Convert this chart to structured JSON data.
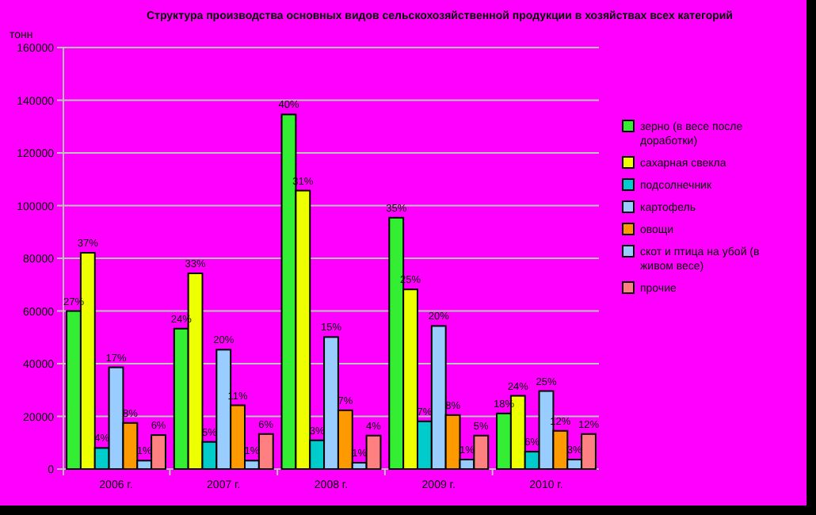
{
  "chart_data": {
    "type": "bar",
    "title": "Структура производства основных видов сельскохозяйственной продукции в хозяйствах всех категорий",
    "ylabel": "тонн",
    "categories": [
      "2006 г.",
      "2007 г.",
      "2008 г.",
      "2009 г.",
      "2010 г."
    ],
    "series": [
      {
        "name": "зерно (в весе после доработки)",
        "color": "#33ee33",
        "values": [
          60000,
          53300,
          134600,
          95400,
          21100
        ]
      },
      {
        "name": "сахарная свекла",
        "color": "#eeff00",
        "values": [
          82100,
          74300,
          105700,
          68200,
          27800
        ]
      },
      {
        "name": "подсолнечник",
        "color": "#00cccc",
        "values": [
          8000,
          10300,
          10900,
          18100,
          6600
        ]
      },
      {
        "name": "картофель",
        "color": "#99ccff",
        "values": [
          38600,
          45300,
          50100,
          54300,
          29600
        ]
      },
      {
        "name": "овощи",
        "color": "#ff9900",
        "values": [
          17500,
          24200,
          22300,
          20500,
          14500
        ]
      },
      {
        "name": "скот и птица на убой (в живом весе)",
        "color": "#99ccfe",
        "values": [
          3200,
          3200,
          2400,
          3600,
          3600
        ]
      },
      {
        "name": "прочие",
        "color": "#ff8080",
        "values": [
          12900,
          13300,
          12700,
          12700,
          13300
        ]
      }
    ],
    "annotations": [
      "27%",
      "37%",
      "4%",
      "17%",
      "8%",
      "1%",
      "6%",
      "24%",
      "33%",
      "5%",
      "20%",
      "11%",
      "1%",
      "6%",
      "40%",
      "31%",
      "3%",
      "15%",
      "7%",
      "1%",
      "4%",
      "35%",
      "25%",
      "7%",
      "20%",
      "8%",
      "1%",
      "5%",
      "18%",
      "24%",
      "6%",
      "25%",
      "12%",
      "3%",
      "12%"
    ],
    "ylim": [
      0,
      160000
    ],
    "yticks": [
      0,
      20000,
      40000,
      60000,
      80000,
      100000,
      120000,
      140000,
      160000
    ],
    "grid": "y",
    "legend": "right"
  }
}
